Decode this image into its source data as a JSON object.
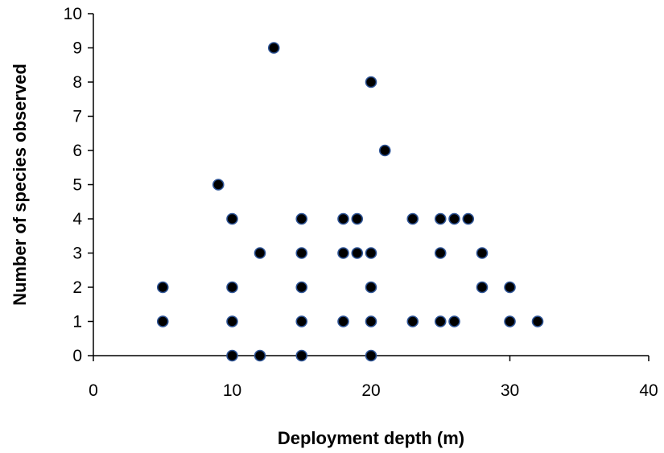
{
  "chart_data": {
    "type": "scatter",
    "xlabel": "Deployment depth (m)",
    "ylabel": "Number of species observed",
    "xlim": [
      0,
      40
    ],
    "ylim": [
      0,
      10
    ],
    "x_ticks": [
      "0",
      "10",
      "20",
      "30",
      "40"
    ],
    "y_ticks": [
      "0",
      "1",
      "2",
      "3",
      "4",
      "5",
      "6",
      "7",
      "8",
      "9",
      "10"
    ],
    "grid": false,
    "legend": "none",
    "marker_fill": "#000000",
    "marker_edge": "#2f5597",
    "points": [
      {
        "x": 5,
        "y": 2
      },
      {
        "x": 5,
        "y": 1
      },
      {
        "x": 9,
        "y": 5
      },
      {
        "x": 10,
        "y": 4
      },
      {
        "x": 10,
        "y": 2
      },
      {
        "x": 10,
        "y": 1
      },
      {
        "x": 10,
        "y": 0
      },
      {
        "x": 12,
        "y": 3
      },
      {
        "x": 12,
        "y": 0
      },
      {
        "x": 13,
        "y": 9
      },
      {
        "x": 15,
        "y": 4
      },
      {
        "x": 15,
        "y": 3
      },
      {
        "x": 15,
        "y": 2
      },
      {
        "x": 15,
        "y": 1
      },
      {
        "x": 15,
        "y": 0
      },
      {
        "x": 18,
        "y": 4
      },
      {
        "x": 18,
        "y": 3
      },
      {
        "x": 18,
        "y": 1
      },
      {
        "x": 19,
        "y": 4
      },
      {
        "x": 19,
        "y": 3
      },
      {
        "x": 20,
        "y": 8
      },
      {
        "x": 20,
        "y": 3
      },
      {
        "x": 20,
        "y": 2
      },
      {
        "x": 20,
        "y": 1
      },
      {
        "x": 20,
        "y": 0
      },
      {
        "x": 21,
        "y": 6
      },
      {
        "x": 23,
        "y": 4
      },
      {
        "x": 23,
        "y": 1
      },
      {
        "x": 25,
        "y": 4
      },
      {
        "x": 25,
        "y": 3
      },
      {
        "x": 25,
        "y": 1
      },
      {
        "x": 26,
        "y": 4
      },
      {
        "x": 26,
        "y": 1
      },
      {
        "x": 27,
        "y": 4
      },
      {
        "x": 28,
        "y": 3
      },
      {
        "x": 28,
        "y": 2
      },
      {
        "x": 30,
        "y": 2
      },
      {
        "x": 30,
        "y": 1
      },
      {
        "x": 32,
        "y": 1
      }
    ]
  }
}
